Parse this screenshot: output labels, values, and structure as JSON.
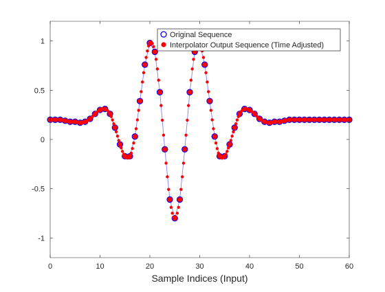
{
  "chart_data": {
    "type": "scatter",
    "xlabel": "Sample Indices (Input)",
    "ylabel": "",
    "title": "",
    "xlim": [
      0,
      60
    ],
    "ylim": [
      -1.2,
      1.2
    ],
    "x_ticks": [
      "0",
      "10",
      "20",
      "30",
      "40",
      "50",
      "60"
    ],
    "y_ticks": [
      "-1",
      "-0.5",
      "0",
      "0.5",
      "1"
    ],
    "x_tick_values": [
      0,
      10,
      20,
      30,
      40,
      50,
      60
    ],
    "y_tick_values": [
      -1,
      -0.5,
      0,
      0.5,
      1
    ],
    "grid": false,
    "legend_position": "top-right",
    "series": [
      {
        "name": "Original Sequence",
        "marker": "open-circle",
        "color": "#0000ff",
        "line_color": "#8080ff",
        "x": [
          0,
          1,
          2,
          3,
          4,
          5,
          6,
          7,
          8,
          9,
          10,
          11,
          12,
          13,
          14,
          15,
          16,
          17,
          18,
          19,
          20,
          21,
          22,
          23,
          24,
          25,
          26,
          27,
          28,
          29,
          30,
          31,
          32,
          33,
          34,
          35,
          36,
          37,
          38,
          39,
          40,
          41,
          42,
          43,
          44,
          45,
          46,
          47,
          48,
          49,
          50,
          51,
          52,
          53,
          54,
          55,
          56,
          57,
          58,
          59,
          60
        ],
        "values": [
          0.2,
          0.2,
          0.2,
          0.19,
          0.18,
          0.18,
          0.17,
          0.18,
          0.21,
          0.26,
          0.3,
          0.31,
          0.26,
          0.12,
          -0.05,
          -0.17,
          -0.17,
          0.03,
          0.39,
          0.76,
          0.98,
          0.89,
          0.48,
          -0.1,
          -0.61,
          -0.8,
          -0.61,
          -0.1,
          0.48,
          0.89,
          0.98,
          0.76,
          0.39,
          0.03,
          -0.17,
          -0.17,
          -0.05,
          0.12,
          0.26,
          0.31,
          0.3,
          0.26,
          0.21,
          0.18,
          0.17,
          0.18,
          0.18,
          0.19,
          0.2,
          0.2,
          0.2,
          0.2,
          0.2,
          0.2,
          0.2,
          0.2,
          0.2,
          0.2,
          0.2,
          0.2,
          0.2
        ]
      },
      {
        "name": "Interpolator Output Sequence (Time Adjusted)",
        "marker": "filled-dot",
        "color": "#ff0000",
        "x": [],
        "values": []
      }
    ]
  }
}
